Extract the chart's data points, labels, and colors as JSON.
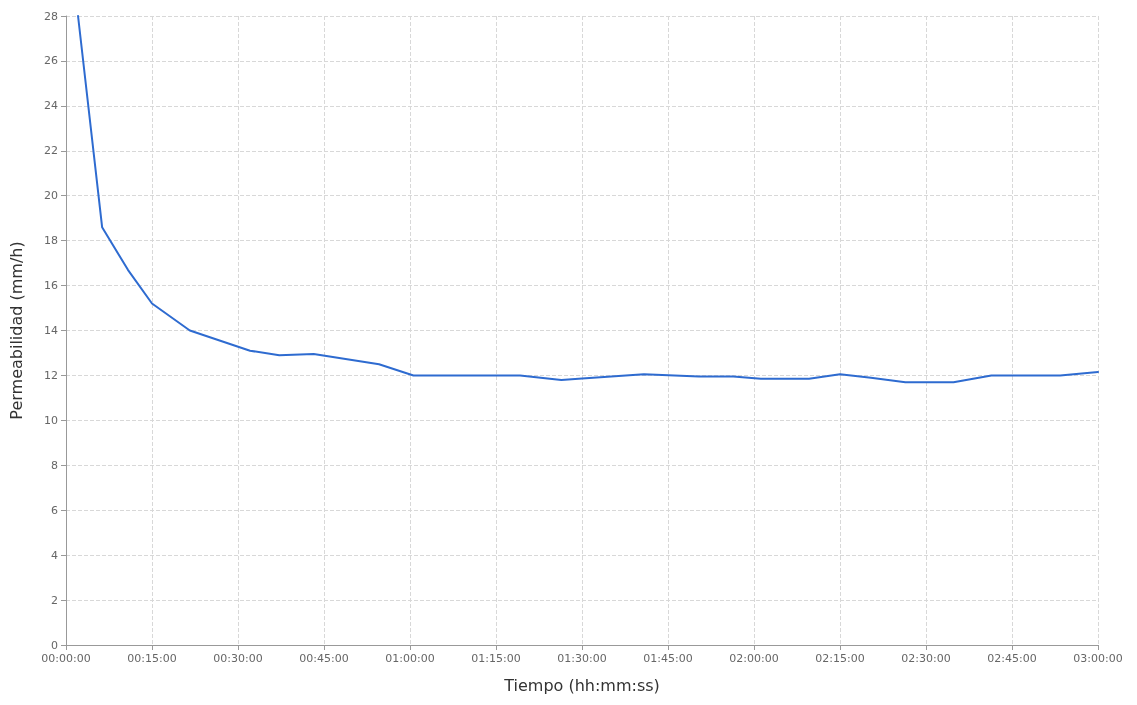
{
  "chart_data": {
    "type": "line",
    "xlabel": "Tiempo (hh:mm:ss)",
    "ylabel": "Permeabilidad (mm/h)",
    "x": [
      0.035,
      0.105,
      0.18,
      0.25,
      0.36,
      0.535,
      0.62,
      0.72,
      0.91,
      1.01,
      1.32,
      1.44,
      1.49,
      1.68,
      1.84,
      1.94,
      2.02,
      2.16,
      2.25,
      2.34,
      2.44,
      2.58,
      2.69,
      2.89,
      3.0
    ],
    "series": [
      {
        "color": "#2e6bd0",
        "values": [
          28,
          18.6,
          16.7,
          15.2,
          14.0,
          13.1,
          12.9,
          12.95,
          12.5,
          12.0,
          12.0,
          11.8,
          11.85,
          12.05,
          11.95,
          11.95,
          11.85,
          11.85,
          12.05,
          11.9,
          11.7,
          11.7,
          12.0,
          12.0,
          12.15
        ]
      }
    ],
    "xlim": [
      0,
      3
    ],
    "ylim": [
      0,
      28
    ],
    "xticks": [
      {
        "value": 0,
        "label": "00:00:00"
      },
      {
        "value": 0.25,
        "label": "00:15:00"
      },
      {
        "value": 0.5,
        "label": "00:30:00"
      },
      {
        "value": 0.75,
        "label": "00:45:00"
      },
      {
        "value": 1,
        "label": "01:00:00"
      },
      {
        "value": 1.25,
        "label": "01:15:00"
      },
      {
        "value": 1.5,
        "label": "01:30:00"
      },
      {
        "value": 1.75,
        "label": "01:45:00"
      },
      {
        "value": 2,
        "label": "02:00:00"
      },
      {
        "value": 2.25,
        "label": "02:15:00"
      },
      {
        "value": 2.5,
        "label": "02:30:00"
      },
      {
        "value": 2.75,
        "label": "02:45:00"
      },
      {
        "value": 3,
        "label": "03:00:00"
      }
    ],
    "yticks": [
      0,
      2,
      4,
      6,
      8,
      10,
      12,
      14,
      16,
      18,
      20,
      22,
      24,
      26,
      28
    ],
    "grid": true,
    "marker": "none",
    "line_style": "solid"
  }
}
